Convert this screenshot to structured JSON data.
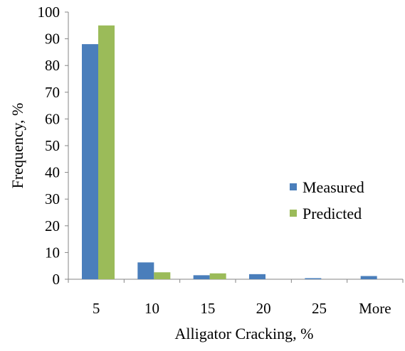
{
  "chart_data": {
    "type": "bar",
    "categories": [
      "5",
      "10",
      "15",
      "20",
      "25",
      "More"
    ],
    "series": [
      {
        "name": "Measured",
        "values": [
          88,
          6.3,
          1.5,
          1.9,
          0.4,
          1.2
        ],
        "color": "#4a7ebb"
      },
      {
        "name": "Predicted",
        "values": [
          95,
          2.6,
          2.2,
          0,
          0,
          0
        ],
        "color": "#9bbb59"
      }
    ],
    "title": "",
    "xlabel": "Alligator Cracking, %",
    "ylabel": "Frequency, %",
    "ylim": [
      0,
      100
    ],
    "yticks": [
      "0",
      "10",
      "20",
      "30",
      "40",
      "50",
      "60",
      "70",
      "80",
      "90",
      "100"
    ],
    "grid": false,
    "legend_position": "right"
  }
}
